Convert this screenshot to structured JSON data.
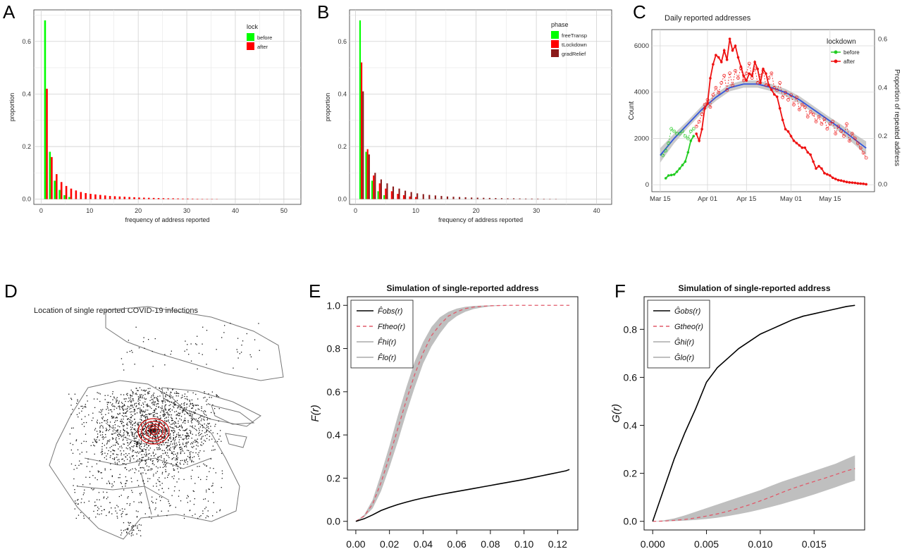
{
  "panel_letters": [
    "A",
    "B",
    "C",
    "D",
    "E",
    "F"
  ],
  "chart_data": [
    {
      "id": "A",
      "type": "bar",
      "xlabel": "frequency of address reported",
      "ylabel": "proportion",
      "xticks": [
        0,
        10,
        20,
        30,
        40,
        50
      ],
      "yticks": [
        "0.0",
        "0.2",
        "0.4",
        "0.6"
      ],
      "xlim": [
        -1.5,
        53.5
      ],
      "ylim": [
        -0.02,
        0.72
      ],
      "grid": true,
      "legend": {
        "title": "lock",
        "position": "top-right"
      },
      "series": [
        {
          "name": "before",
          "color": "#00ff00",
          "x": [
            1,
            2,
            3,
            4,
            5,
            6
          ],
          "values": [
            0.68,
            0.18,
            0.07,
            0.035,
            0.015,
            0.008
          ]
        },
        {
          "name": "after",
          "color": "#ff0000",
          "x": [
            1,
            2,
            3,
            4,
            5,
            6,
            7,
            8,
            9,
            10,
            11,
            12,
            13,
            14,
            15,
            16,
            17,
            18,
            19,
            20,
            21,
            22,
            23,
            24,
            25,
            26,
            27,
            28,
            29,
            30,
            31,
            32,
            33,
            34,
            35,
            36
          ],
          "values": [
            0.42,
            0.16,
            0.095,
            0.065,
            0.05,
            0.04,
            0.033,
            0.027,
            0.023,
            0.02,
            0.018,
            0.016,
            0.014,
            0.012,
            0.011,
            0.01,
            0.009,
            0.008,
            0.007,
            0.006,
            0.0055,
            0.005,
            0.0045,
            0.004,
            0.0035,
            0.003,
            0.003,
            0.0025,
            0.002,
            0.002,
            0.0018,
            0.0015,
            0.0012,
            0.001,
            0.001,
            0.0008
          ]
        }
      ]
    },
    {
      "id": "B",
      "type": "bar",
      "xlabel": "frequency of address reported",
      "ylabel": "proportion",
      "xticks": [
        0,
        10,
        20,
        30,
        40
      ],
      "yticks": [
        "0.0",
        "0.2",
        "0.4",
        "0.6"
      ],
      "xlim": [
        -1,
        42.5
      ],
      "ylim": [
        -0.02,
        0.72
      ],
      "grid": true,
      "legend": {
        "title": "phase",
        "position": "top-right"
      },
      "series": [
        {
          "name": "freeTransp",
          "color": "#00ff00",
          "x": [
            1,
            2,
            3,
            4,
            5
          ],
          "values": [
            0.68,
            0.18,
            0.07,
            0.03,
            0.015
          ]
        },
        {
          "name": "tLockdown",
          "color": "#ff0000",
          "x": [
            1,
            2,
            3,
            4,
            5,
            6,
            7,
            8,
            9,
            10
          ],
          "values": [
            0.52,
            0.19,
            0.09,
            0.06,
            0.04,
            0.03,
            0.02,
            0.015,
            0.01,
            0.008
          ]
        },
        {
          "name": "gradRelief",
          "color": "#8b1a1a",
          "x": [
            1,
            2,
            3,
            4,
            5,
            6,
            7,
            8,
            9,
            10,
            11,
            12,
            13,
            14,
            15,
            16,
            17,
            18,
            19,
            20,
            21,
            22,
            23,
            24,
            25,
            26,
            27,
            28,
            29,
            30,
            31,
            32,
            33
          ],
          "values": [
            0.41,
            0.17,
            0.1,
            0.075,
            0.06,
            0.048,
            0.04,
            0.032,
            0.027,
            0.022,
            0.019,
            0.016,
            0.014,
            0.012,
            0.01,
            0.009,
            0.008,
            0.007,
            0.006,
            0.0055,
            0.005,
            0.0045,
            0.004,
            0.0035,
            0.003,
            0.003,
            0.0025,
            0.002,
            0.002,
            0.0018,
            0.0015,
            0.0012,
            0.001
          ]
        }
      ]
    },
    {
      "id": "C",
      "type": "line",
      "title": "Daily reported addresses",
      "ylabel": "Count",
      "y2label": "Proportion of repeated address",
      "xticks": [
        "Mar 15",
        "Apr 01",
        "Apr 15",
        "May 01",
        "May 15"
      ],
      "xtick_days": [
        0,
        17,
        31,
        47,
        61
      ],
      "yticks": [
        0,
        2000,
        4000,
        6000
      ],
      "y2ticks": [
        "0.0",
        "0.2",
        "0.4",
        "0.6"
      ],
      "xlim": [
        -3,
        77
      ],
      "ylim": [
        -300,
        6700
      ],
      "legend": {
        "title": "lockdown",
        "position": "top-right"
      },
      "series": [
        {
          "name": "before",
          "color": "#22cc22",
          "days": [
            2,
            3,
            4,
            5,
            6,
            7,
            8,
            9,
            10,
            11,
            12
          ],
          "counts": [
            280,
            400,
            420,
            440,
            560,
            700,
            850,
            1000,
            1400,
            1900,
            2100
          ],
          "proportion_days": [
            1,
            2,
            3,
            4,
            5,
            6,
            7,
            8,
            9,
            10,
            11,
            12
          ],
          "proportion": [
            0.12,
            0.14,
            0.17,
            0.23,
            0.22,
            0.21,
            0.21,
            0.22,
            0.2,
            0.19,
            0.22,
            0.23
          ]
        },
        {
          "name": "after",
          "color": "#ee1111",
          "days": [
            13,
            14,
            15,
            16,
            17,
            18,
            19,
            20,
            21,
            22,
            23,
            24,
            25,
            26,
            27,
            28,
            29,
            30,
            31,
            32,
            33,
            34,
            35,
            36,
            37,
            38,
            39,
            40,
            41,
            42,
            43,
            44,
            45,
            46,
            47,
            48,
            49,
            50,
            51,
            52,
            53,
            54,
            55,
            56,
            57,
            58,
            59,
            60,
            61,
            62,
            63,
            64,
            65,
            66,
            67,
            68,
            69,
            70,
            71,
            72,
            73,
            74
          ],
          "counts": [
            2200,
            1900,
            2400,
            3300,
            3500,
            4600,
            5200,
            5600,
            5500,
            5300,
            5800,
            5400,
            6300,
            5800,
            6000,
            5500,
            5100,
            4700,
            4500,
            4800,
            4700,
            5300,
            5000,
            4400,
            5000,
            4800,
            4300,
            4100,
            3900,
            3800,
            3300,
            2800,
            2400,
            2300,
            2100,
            1900,
            1800,
            1700,
            1600,
            1600,
            1400,
            1300,
            1000,
            700,
            800,
            700,
            500,
            450,
            400,
            300,
            250,
            200,
            180,
            150,
            120,
            100,
            90,
            80,
            60,
            50,
            40,
            20
          ],
          "proportion_days": [
            13,
            14,
            15,
            16,
            17,
            18,
            19,
            20,
            21,
            22,
            23,
            24,
            25,
            26,
            27,
            28,
            29,
            30,
            31,
            32,
            33,
            34,
            35,
            36,
            37,
            38,
            39,
            40,
            41,
            42,
            43,
            44,
            45,
            46,
            47,
            48,
            49,
            50,
            51,
            52,
            53,
            54,
            55,
            56,
            57,
            58,
            59,
            60,
            61,
            62,
            63,
            64,
            65,
            66,
            67,
            68,
            69,
            70,
            71,
            72,
            73,
            74
          ],
          "proportion": [
            0.24,
            0.26,
            0.29,
            0.33,
            0.35,
            0.32,
            0.37,
            0.4,
            0.38,
            0.42,
            0.45,
            0.39,
            0.46,
            0.41,
            0.47,
            0.44,
            0.48,
            0.43,
            0.46,
            0.5,
            0.44,
            0.48,
            0.42,
            0.45,
            0.47,
            0.41,
            0.44,
            0.46,
            0.4,
            0.39,
            0.42,
            0.36,
            0.38,
            0.35,
            0.37,
            0.33,
            0.36,
            0.31,
            0.33,
            0.32,
            0.28,
            0.3,
            0.29,
            0.26,
            0.28,
            0.25,
            0.27,
            0.23,
            0.25,
            0.26,
            0.21,
            0.24,
            0.22,
            0.2,
            0.25,
            0.18,
            0.21,
            0.19,
            0.17,
            0.15,
            0.13,
            0.11
          ]
        }
      ],
      "smooth_fit": {
        "days": [
          0,
          5,
          10,
          15,
          20,
          25,
          30,
          35,
          40,
          45,
          50,
          55,
          60,
          65,
          70,
          74
        ],
        "proportion": [
          0.12,
          0.19,
          0.25,
          0.31,
          0.36,
          0.4,
          0.415,
          0.415,
          0.4,
          0.38,
          0.35,
          0.31,
          0.27,
          0.23,
          0.185,
          0.15
        ],
        "band": [
          0.03,
          0.02,
          0.015,
          0.015,
          0.015,
          0.015,
          0.015,
          0.015,
          0.015,
          0.015,
          0.015,
          0.015,
          0.015,
          0.018,
          0.022,
          0.028
        ]
      }
    },
    {
      "id": "D",
      "type": "map",
      "title": "Location of single reported COVID-19 infections"
    },
    {
      "id": "E",
      "type": "line",
      "title": "Simulation of single-reported address",
      "ylabel": "F(r)",
      "xticks": [
        "0.00",
        "0.02",
        "0.04",
        "0.06",
        "0.08",
        "0.10",
        "0.12"
      ],
      "yticks": [
        "0.0",
        "0.2",
        "0.4",
        "0.6",
        "0.8",
        "1.0"
      ],
      "xlim": [
        -0.005,
        0.132
      ],
      "ylim": [
        -0.04,
        1.04
      ],
      "legend": {
        "position": "top-left",
        "entries": [
          {
            "label": "F̂obs(r)",
            "style": "solid",
            "color": "#000000"
          },
          {
            "label": "Ftheo(r)",
            "style": "dashed",
            "color": "#e05a6a"
          },
          {
            "label": "F̂hi(r)",
            "style": "solid",
            "color": "#aaaaaa"
          },
          {
            "label": "F̂lo(r)",
            "style": "solid",
            "color": "#aaaaaa"
          }
        ]
      },
      "x": [
        0,
        0.005,
        0.01,
        0.015,
        0.02,
        0.025,
        0.03,
        0.035,
        0.04,
        0.045,
        0.05,
        0.055,
        0.06,
        0.065,
        0.07,
        0.075,
        0.08,
        0.085,
        0.09,
        0.095,
        0.1,
        0.105,
        0.11,
        0.115,
        0.12,
        0.125,
        0.127
      ],
      "series": [
        {
          "name": "obs",
          "values": [
            0,
            0.012,
            0.03,
            0.05,
            0.065,
            0.078,
            0.089,
            0.099,
            0.108,
            0.116,
            0.124,
            0.131,
            0.138,
            0.145,
            0.152,
            0.159,
            0.166,
            0.173,
            0.18,
            0.187,
            0.194,
            0.202,
            0.21,
            0.218,
            0.226,
            0.234,
            0.24
          ]
        },
        {
          "name": "theo",
          "values": [
            0,
            0.025,
            0.08,
            0.18,
            0.3,
            0.43,
            0.56,
            0.68,
            0.78,
            0.86,
            0.91,
            0.95,
            0.97,
            0.985,
            0.992,
            0.996,
            0.998,
            0.999,
            1,
            1,
            1,
            1,
            1,
            1,
            1,
            1,
            1
          ]
        },
        {
          "name": "hi",
          "values": [
            0,
            0.03,
            0.1,
            0.22,
            0.35,
            0.49,
            0.62,
            0.74,
            0.83,
            0.9,
            0.945,
            0.97,
            0.985,
            0.993,
            0.997,
            0.999,
            1,
            1,
            1,
            1,
            1,
            1,
            1,
            1,
            1,
            1,
            1
          ]
        },
        {
          "name": "lo",
          "values": [
            0,
            0.02,
            0.06,
            0.14,
            0.25,
            0.37,
            0.5,
            0.62,
            0.73,
            0.81,
            0.87,
            0.92,
            0.95,
            0.97,
            0.983,
            0.99,
            0.995,
            0.998,
            0.999,
            1,
            1,
            1,
            1,
            1,
            1,
            1,
            1
          ]
        }
      ]
    },
    {
      "id": "F",
      "type": "line",
      "title": "Simulation of single-reported address",
      "ylabel": "G(r)",
      "xticks": [
        "0.000",
        "0.005",
        "0.010",
        "0.015"
      ],
      "yticks": [
        "0.0",
        "0.2",
        "0.4",
        "0.6",
        "0.8"
      ],
      "xlim": [
        -0.0008,
        0.0197
      ],
      "ylim": [
        -0.036,
        0.936
      ],
      "legend": {
        "position": "top-left",
        "entries": [
          {
            "label": "Ĝobs(r)",
            "style": "solid",
            "color": "#000000"
          },
          {
            "label": "Gtheo(r)",
            "style": "dashed",
            "color": "#e05a6a"
          },
          {
            "label": "Ĝhi(r)",
            "style": "solid",
            "color": "#aaaaaa"
          },
          {
            "label": "Ĝlo(r)",
            "style": "solid",
            "color": "#aaaaaa"
          }
        ]
      },
      "x": [
        0,
        0.001,
        0.002,
        0.003,
        0.004,
        0.005,
        0.006,
        0.007,
        0.008,
        0.009,
        0.01,
        0.011,
        0.012,
        0.013,
        0.014,
        0.015,
        0.016,
        0.017,
        0.018,
        0.0188
      ],
      "series": [
        {
          "name": "obs",
          "values": [
            0,
            0.13,
            0.26,
            0.37,
            0.47,
            0.58,
            0.64,
            0.68,
            0.72,
            0.75,
            0.78,
            0.8,
            0.82,
            0.84,
            0.855,
            0.865,
            0.875,
            0.885,
            0.895,
            0.9
          ]
        },
        {
          "name": "theo",
          "values": [
            0,
            0.001,
            0.004,
            0.008,
            0.014,
            0.022,
            0.031,
            0.042,
            0.055,
            0.069,
            0.085,
            0.102,
            0.12,
            0.137,
            0.152,
            0.166,
            0.18,
            0.195,
            0.21,
            0.22
          ]
        },
        {
          "name": "hi",
          "values": [
            0,
            0.004,
            0.012,
            0.025,
            0.04,
            0.055,
            0.07,
            0.085,
            0.1,
            0.115,
            0.13,
            0.148,
            0.165,
            0.18,
            0.195,
            0.21,
            0.225,
            0.24,
            0.26,
            0.275
          ]
        },
        {
          "name": "lo",
          "values": [
            0,
            0,
            0.001,
            0.003,
            0.006,
            0.01,
            0.015,
            0.022,
            0.03,
            0.039,
            0.049,
            0.06,
            0.072,
            0.085,
            0.098,
            0.112,
            0.127,
            0.142,
            0.158,
            0.17
          ]
        }
      ]
    }
  ]
}
